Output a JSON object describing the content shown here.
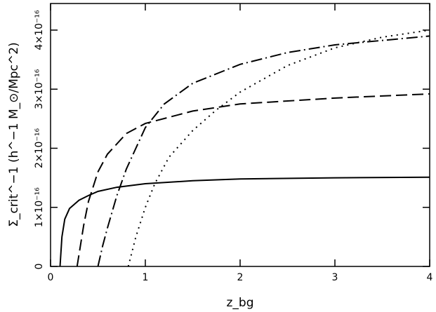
{
  "chart_data": {
    "type": "line",
    "xlabel": "z_bg",
    "ylabel": "Σ_crit^−1 (h^−1 M_⊙/Mpc^2)",
    "xlim": [
      0,
      4
    ],
    "xticks": [
      0,
      1,
      2,
      3,
      4
    ],
    "ylim": [
      0,
      4.45e-16
    ],
    "yticks": [
      0,
      {
        "value": 1e-16,
        "label": "1×10⁻¹⁶"
      },
      {
        "value": 2e-16,
        "label": "2×10⁻¹⁶"
      },
      {
        "value": 3e-16,
        "label": "3×10⁻¹⁶"
      },
      {
        "value": 4e-16,
        "label": "4×10⁻¹⁶"
      }
    ],
    "series": [
      {
        "color": "#000000",
        "dash": "none",
        "x": [
          0.1,
          0.12,
          0.15,
          0.2,
          0.3,
          0.4,
          0.5,
          0.7,
          1,
          1.5,
          2,
          3,
          4
        ],
        "values": [
          0,
          5e-17,
          8e-17,
          9.8e-17,
          1.12e-16,
          1.2e-16,
          1.27e-16,
          1.34e-16,
          1.4e-16,
          1.45e-16,
          1.48e-16,
          1.5e-16,
          1.51e-16
        ]
      },
      {
        "color": "#000000",
        "dash": "16 7",
        "x": [
          0.28,
          0.35,
          0.4,
          0.5,
          0.6,
          0.8,
          1,
          1.5,
          2,
          3,
          4
        ],
        "values": [
          0,
          7e-17,
          1.1e-16,
          1.6e-16,
          1.9e-16,
          2.25e-16,
          2.42e-16,
          2.63e-16,
          2.75e-16,
          2.85e-16,
          2.92e-16
        ]
      },
      {
        "color": "#000000",
        "dash": "16 5 2 5",
        "x": [
          0.5,
          0.55,
          0.6,
          0.7,
          0.8,
          1,
          1.2,
          1.5,
          2,
          2.5,
          3,
          4
        ],
        "values": [
          0,
          3.5e-17,
          6.5e-17,
          1.2e-16,
          1.65e-16,
          2.35e-16,
          2.75e-16,
          3.1e-16,
          3.42e-16,
          3.62e-16,
          3.75e-16,
          3.9e-16
        ]
      },
      {
        "color": "#000000",
        "dash": "2 6",
        "x": [
          0.82,
          0.9,
          1,
          1.1,
          1.25,
          1.5,
          1.75,
          2,
          2.5,
          3,
          3.5,
          4
        ],
        "values": [
          0,
          5e-17,
          1e-16,
          1.4e-16,
          1.85e-16,
          2.3e-16,
          2.65e-16,
          2.95e-16,
          3.4e-16,
          3.7e-16,
          3.88e-16,
          4e-16
        ]
      }
    ]
  }
}
